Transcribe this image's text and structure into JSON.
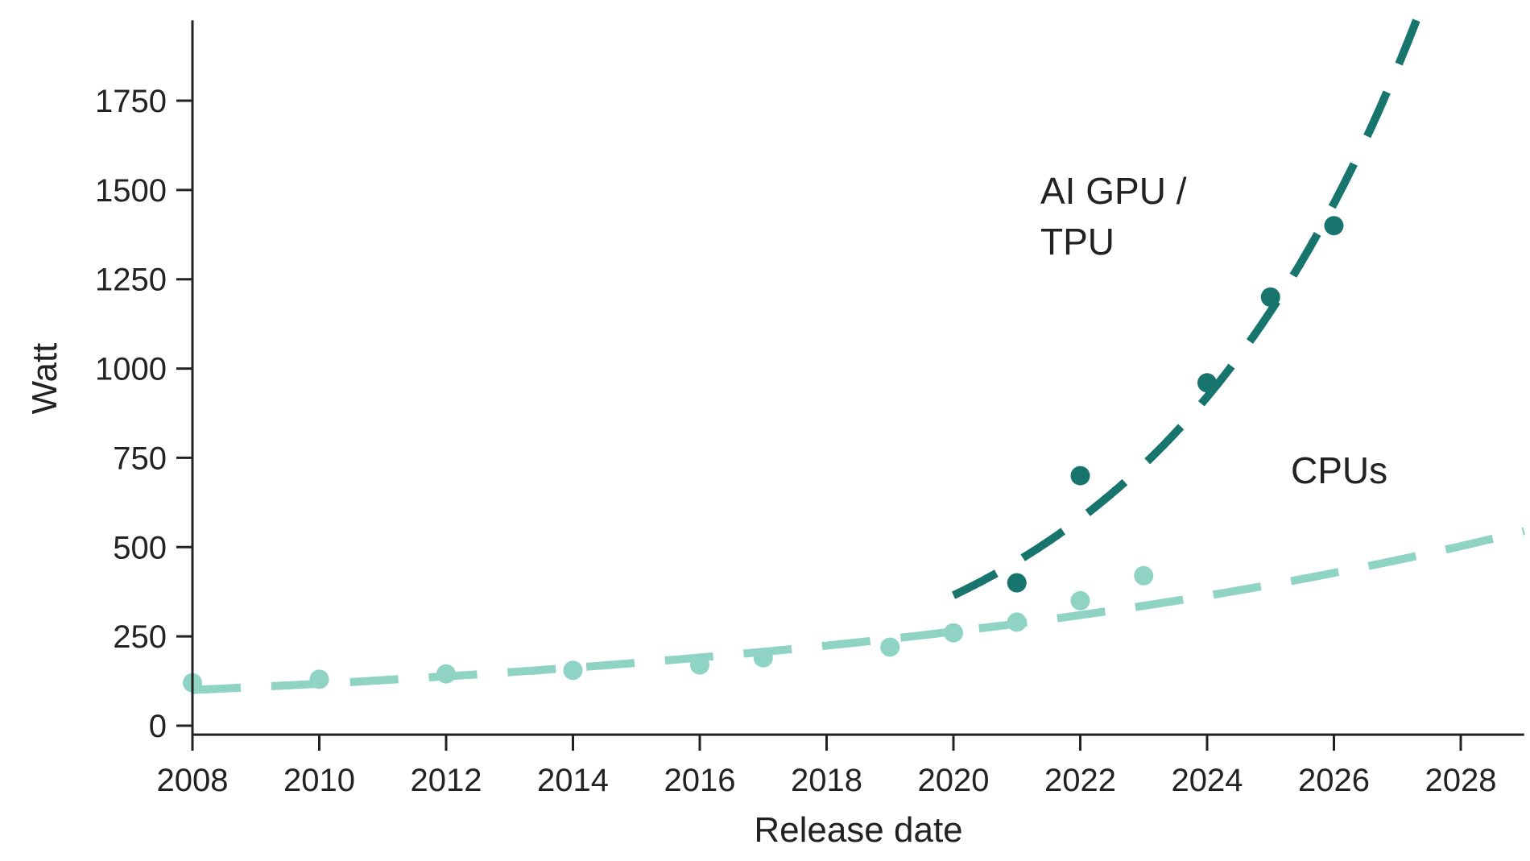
{
  "chart_data": {
    "type": "scatter",
    "title": "",
    "xlabel": "Release date",
    "ylabel": "Watt",
    "xlim": [
      2008,
      2029
    ],
    "ylim": [
      -25,
      1975
    ],
    "xticks": [
      2008,
      2010,
      2012,
      2014,
      2016,
      2018,
      2020,
      2022,
      2024,
      2026,
      2028
    ],
    "yticks": [
      0,
      250,
      500,
      750,
      1000,
      1250,
      1500,
      1750
    ],
    "grid": false,
    "legend": "none",
    "series": [
      {
        "name": "CPUs",
        "color": "#8fd3c4",
        "points": [
          {
            "x": 2008,
            "y": 120
          },
          {
            "x": 2010,
            "y": 130
          },
          {
            "x": 2012,
            "y": 145
          },
          {
            "x": 2014,
            "y": 155
          },
          {
            "x": 2016,
            "y": 170
          },
          {
            "x": 2017,
            "y": 190
          },
          {
            "x": 2019,
            "y": 220
          },
          {
            "x": 2020,
            "y": 260
          },
          {
            "x": 2021,
            "y": 290
          },
          {
            "x": 2022,
            "y": 350
          },
          {
            "x": 2023,
            "y": 420
          }
        ],
        "trend": {
          "type": "exponential",
          "x_range": [
            2008,
            2029
          ],
          "y_at_start": 100,
          "y_at_end": 545
        }
      },
      {
        "name": "AI GPU / TPU",
        "color": "#17756e",
        "points": [
          {
            "x": 2021,
            "y": 400
          },
          {
            "x": 2022,
            "y": 700
          },
          {
            "x": 2024,
            "y": 960
          },
          {
            "x": 2025,
            "y": 1200
          },
          {
            "x": 2026,
            "y": 1400
          }
        ],
        "trend": {
          "type": "exponential",
          "x_range": [
            2020,
            2027.3
          ],
          "y_at_start": 365,
          "y_at_end": 1975
        }
      }
    ],
    "annotations": [
      {
        "lines": [
          "AI GPU /",
          "TPU"
        ],
        "series": "AI GPU / TPU"
      },
      {
        "lines": [
          "CPUs"
        ],
        "series": "CPUs"
      }
    ]
  }
}
